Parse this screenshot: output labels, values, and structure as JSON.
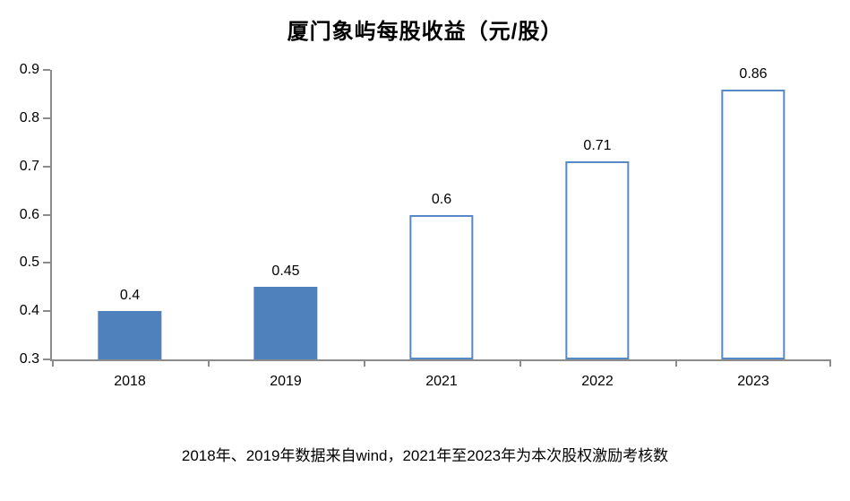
{
  "chart_data": {
    "type": "bar",
    "title": "厦门象屿每股收益（元/股）",
    "categories": [
      "2018",
      "2019",
      "2021",
      "2022",
      "2023"
    ],
    "values": [
      0.4,
      0.45,
      0.6,
      0.71,
      0.86
    ],
    "labels": [
      "0.4",
      "0.45",
      "0.6",
      "0.71",
      "0.86"
    ],
    "bar_styles": [
      "filled",
      "filled",
      "outlined",
      "outlined",
      "outlined"
    ],
    "ylim": [
      0.3,
      0.9
    ],
    "ytick_step": 0.1,
    "ytick_labels": [
      "0.3",
      "0.4",
      "0.5",
      "0.6",
      "0.7",
      "0.8",
      "0.9"
    ],
    "xlabel": "",
    "ylabel": "",
    "grid": "off",
    "legend": "none",
    "colors": {
      "bar_fill": "#4f81bd",
      "bar_outline": "#5589c8",
      "axis": "#8c8c8c",
      "text": "#000000"
    },
    "note": "2018年、2019年数据来自wind，2021年至2023年为本次股权激励考核数"
  }
}
